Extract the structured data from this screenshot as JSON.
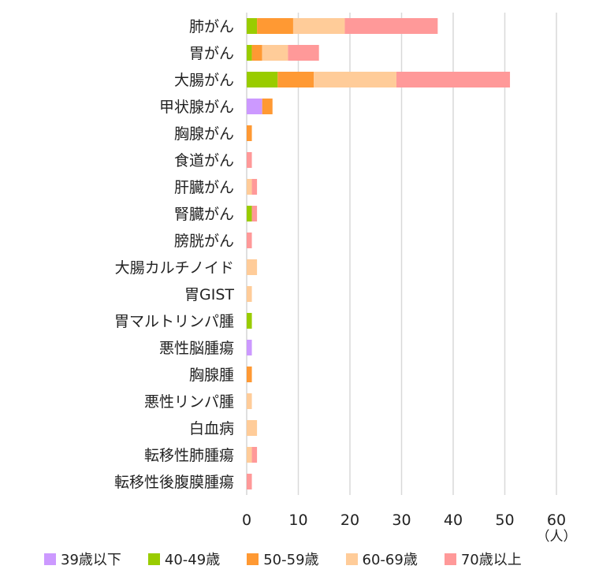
{
  "chart_data": {
    "type": "bar",
    "orientation": "horizontal",
    "stacked": true,
    "categories": [
      "肺がん",
      "胃がん",
      "大腸がん",
      "甲状腺がん",
      "胸腺がん",
      "食道がん",
      "肝臓がん",
      "腎臓がん",
      "膀胱がん",
      "大腸カルチノイド",
      "胃GIST",
      "胃マルトリンパ腫",
      "悪性脳腫瘍",
      "胸腺腫",
      "悪性リンパ腫",
      "白血病",
      "転移性肺腫瘍",
      "転移性後腹膜腫瘍"
    ],
    "series": [
      {
        "name": "39歳以下",
        "color": "#CC99FF",
        "values": [
          0,
          0,
          0,
          3,
          0,
          0,
          0,
          0,
          0,
          0,
          0,
          0,
          1,
          0,
          0,
          0,
          0,
          0
        ]
      },
      {
        "name": "40-49歳",
        "color": "#99CC00",
        "values": [
          2,
          1,
          6,
          0,
          0,
          0,
          0,
          1,
          0,
          0,
          0,
          1,
          0,
          0,
          0,
          0,
          0,
          0
        ]
      },
      {
        "name": "50-59歳",
        "color": "#FF9933",
        "values": [
          7,
          2,
          7,
          2,
          1,
          0,
          0,
          0,
          0,
          0,
          0,
          0,
          0,
          1,
          0,
          0,
          0,
          0
        ]
      },
      {
        "name": "60-69歳",
        "color": "#FFCC99",
        "values": [
          10,
          5,
          16,
          0,
          0,
          0,
          1,
          0,
          0,
          2,
          1,
          0,
          0,
          0,
          1,
          2,
          1,
          0
        ]
      },
      {
        "name": "70歳以上",
        "color": "#FF9999",
        "values": [
          18,
          6,
          22,
          0,
          0,
          1,
          1,
          1,
          1,
          0,
          0,
          0,
          0,
          0,
          0,
          0,
          1,
          1
        ]
      }
    ],
    "x_ticks": [
      0,
      10,
      20,
      30,
      40,
      50,
      60
    ],
    "xlim": [
      0,
      60
    ],
    "x_unit": "（人）",
    "grid": true,
    "legend_position": "bottom"
  }
}
